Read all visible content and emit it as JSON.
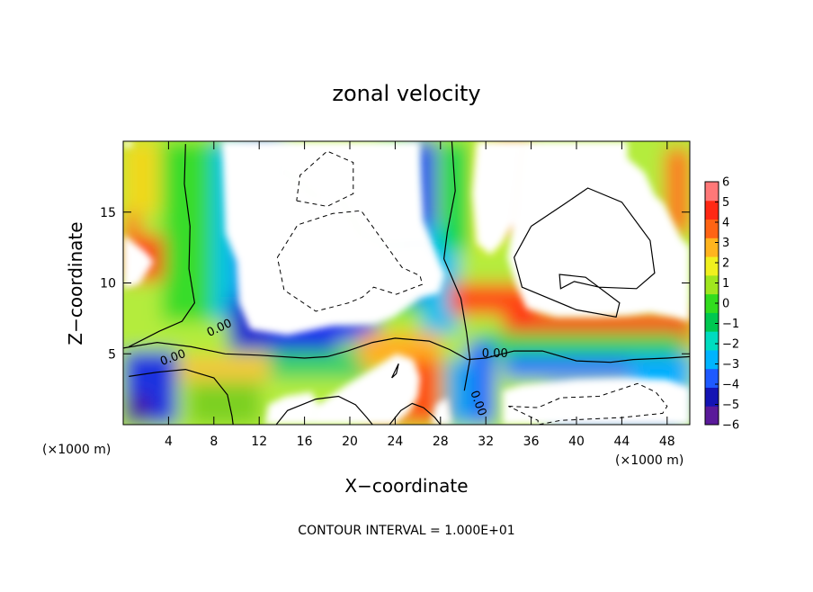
{
  "chart_data": {
    "type": "heatmap",
    "title": "zonal velocity",
    "xlabel": "X−coordinate",
    "ylabel": "Z−coordinate",
    "x_unit": "(×1000 m)",
    "y_unit": "(×1000 m)",
    "footnote": "CONTOUR INTERVAL = 1.000E+01",
    "xlim": [
      0,
      50
    ],
    "ylim": [
      0,
      20
    ],
    "xticks": [
      4,
      8,
      12,
      16,
      20,
      24,
      28,
      32,
      36,
      40,
      44,
      48
    ],
    "yticks": [
      5,
      10,
      15
    ],
    "colorbar": {
      "min": -6,
      "max": 6,
      "ticks": [
        6,
        5,
        4,
        3,
        2,
        1,
        0,
        -1,
        -2,
        -3,
        -4,
        -5,
        -6
      ],
      "tick_labels": [
        "6",
        "5",
        "4",
        "3",
        "2",
        "1",
        "0",
        "−1",
        "−2",
        "−3",
        "−4",
        "−5",
        "−6"
      ],
      "colors": [
        "#5a1a9a",
        "#1414b4",
        "#1e5aff",
        "#00b4ff",
        "#00dcc0",
        "#00c850",
        "#32dc1e",
        "#a0e61e",
        "#f0f01e",
        "#ffb41e",
        "#ff6414",
        "#ff2814",
        "#ff7878"
      ]
    },
    "contour_labels": [
      {
        "text": "0.00",
        "x": 8.5,
        "y": 6.8,
        "angle": -25
      },
      {
        "text": "0.00",
        "x": 4.4,
        "y": 4.7,
        "angle": -20
      },
      {
        "text": "0.00",
        "x": 32.8,
        "y": 5.0,
        "angle": 0
      },
      {
        "text": "0.00",
        "x": 31.3,
        "y": 1.5,
        "angle": 70
      }
    ],
    "contours": [
      {
        "style": "solid",
        "points": [
          [
            5.5,
            19.8
          ],
          [
            5.4,
            17
          ],
          [
            5.9,
            14
          ],
          [
            5.8,
            11
          ],
          [
            6.3,
            8.6
          ],
          [
            5.2,
            7.3
          ],
          [
            3.2,
            6.6
          ],
          [
            0.5,
            5.5
          ]
        ]
      },
      {
        "style": "solid",
        "points": [
          [
            0,
            5.4
          ],
          [
            3,
            5.8
          ],
          [
            6,
            5.5
          ],
          [
            9,
            5
          ],
          [
            12,
            4.9
          ],
          [
            16,
            4.7
          ],
          [
            18,
            4.8
          ],
          [
            19.8,
            5.2
          ],
          [
            22,
            5.8
          ],
          [
            24,
            6.1
          ],
          [
            27,
            5.9
          ],
          [
            28.8,
            5.3
          ],
          [
            30.4,
            4.6
          ],
          [
            32,
            4.7
          ],
          [
            34.5,
            5.2
          ],
          [
            37,
            5.2
          ],
          [
            40,
            4.5
          ],
          [
            43,
            4.4
          ],
          [
            45,
            4.6
          ],
          [
            48,
            4.7
          ],
          [
            50,
            4.8
          ]
        ]
      },
      {
        "style": "solid",
        "points": [
          [
            0.5,
            3.4
          ],
          [
            3,
            3.7
          ],
          [
            5.5,
            3.9
          ],
          [
            8,
            3.3
          ],
          [
            9.2,
            2.1
          ],
          [
            9.6,
            0.6
          ],
          [
            9.7,
            0
          ]
        ]
      },
      {
        "style": "solid",
        "points": [
          [
            30.1,
            2.4
          ],
          [
            30.6,
            4.6
          ],
          [
            30.3,
            6.5
          ],
          [
            29.8,
            8.9
          ],
          [
            28.3,
            11.7
          ],
          [
            28.6,
            13.6
          ],
          [
            29.3,
            16.5
          ],
          [
            29.0,
            20
          ]
        ]
      },
      {
        "style": "solid",
        "points": [
          [
            13.5,
            0
          ],
          [
            14.5,
            1
          ],
          [
            17,
            1.8
          ],
          [
            19,
            2
          ],
          [
            20.5,
            1.4
          ],
          [
            21.5,
            0.5
          ],
          [
            22,
            0
          ]
        ]
      },
      {
        "style": "solid",
        "points": [
          [
            23.7,
            3.3
          ],
          [
            24.3,
            4.3
          ],
          [
            24.1,
            3.6
          ],
          [
            23.7,
            3.3
          ]
        ]
      },
      {
        "style": "solid",
        "points": [
          [
            23.5,
            0
          ],
          [
            24.5,
            1
          ],
          [
            25.5,
            1.5
          ],
          [
            26.5,
            1.2
          ],
          [
            27.5,
            0.5
          ],
          [
            28,
            0
          ]
        ]
      },
      {
        "style": "solid",
        "points": [
          [
            36,
            14
          ],
          [
            39,
            15.6
          ],
          [
            41,
            16.7
          ],
          [
            44,
            15.7
          ],
          [
            46.5,
            13
          ],
          [
            46.9,
            10.7
          ],
          [
            45.3,
            9.6
          ],
          [
            42,
            9.7
          ],
          [
            39.8,
            10.1
          ],
          [
            38.6,
            9.6
          ],
          [
            38.5,
            10.6
          ],
          [
            40.8,
            10.4
          ],
          [
            43.8,
            8.6
          ],
          [
            43.5,
            7.6
          ],
          [
            40,
            8.1
          ],
          [
            35.2,
            9.7
          ],
          [
            34.5,
            11.8
          ],
          [
            36,
            14
          ]
        ]
      },
      {
        "style": "dashed",
        "points": [
          [
            15.3,
            15.8
          ],
          [
            18,
            15.4
          ],
          [
            20.3,
            16.3
          ],
          [
            20.3,
            18.5
          ],
          [
            18,
            19.3
          ],
          [
            15.6,
            17.6
          ],
          [
            15.3,
            15.8
          ]
        ]
      },
      {
        "style": "dashed",
        "points": [
          [
            13.6,
            11.8
          ],
          [
            15.4,
            14.1
          ],
          [
            18.5,
            14.9
          ],
          [
            21,
            15.1
          ],
          [
            24.6,
            11.1
          ],
          [
            26.2,
            10.5
          ],
          [
            26.4,
            9.9
          ],
          [
            24.1,
            9.2
          ],
          [
            22.1,
            9.7
          ],
          [
            21.1,
            9.0
          ],
          [
            19.9,
            8.6
          ],
          [
            17,
            8.0
          ],
          [
            14.2,
            9.5
          ],
          [
            13.6,
            11.8
          ]
        ]
      },
      {
        "style": "dashed",
        "points": [
          [
            34,
            1.3
          ],
          [
            36.6,
            1.2
          ],
          [
            38.6,
            1.9
          ],
          [
            42,
            2.0
          ],
          [
            45.4,
            2.9
          ],
          [
            47,
            2.3
          ],
          [
            48,
            1.3
          ],
          [
            47.6,
            0.8
          ],
          [
            44,
            0.5
          ],
          [
            38.6,
            0.3
          ],
          [
            36.6,
            0
          ],
          [
            36.6,
            0.3
          ],
          [
            34,
            1.3
          ]
        ]
      }
    ],
    "clear_regions": [
      {
        "points": [
          [
            17.2,
            16
          ],
          [
            19.1,
            16
          ],
          [
            21,
            13.5
          ],
          [
            23.5,
            12.6
          ],
          [
            26.6,
            12.8
          ],
          [
            28.4,
            10.6
          ],
          [
            27.9,
            9.3
          ],
          [
            26.2,
            8.9
          ],
          [
            23.9,
            7.6
          ],
          [
            22.2,
            7.1
          ],
          [
            18.6,
            7.0
          ],
          [
            14.5,
            6.3
          ],
          [
            11.2,
            6.7
          ],
          [
            10.2,
            8.6
          ],
          [
            10.0,
            11.5
          ],
          [
            9.0,
            13.5
          ],
          [
            8.7,
            20
          ],
          [
            14,
            20
          ],
          [
            14,
            18
          ],
          [
            17.2,
            16
          ]
        ]
      },
      {
        "points": [
          [
            13,
            20
          ],
          [
            26.2,
            20
          ],
          [
            26.3,
            17.3
          ],
          [
            26.5,
            14.4
          ],
          [
            28.4,
            10.6
          ],
          [
            26.6,
            12.8
          ],
          [
            23.5,
            12.6
          ],
          [
            21,
            13.5
          ],
          [
            19.1,
            16
          ],
          [
            17.2,
            16
          ],
          [
            14,
            18
          ],
          [
            13,
            20
          ]
        ]
      },
      {
        "points": [
          [
            35.3,
            20
          ],
          [
            44.5,
            20
          ],
          [
            44.5,
            18.8
          ],
          [
            46,
            17.8
          ],
          [
            46.9,
            16.2
          ],
          [
            47.7,
            15.6
          ],
          [
            49.2,
            13.2
          ],
          [
            50,
            12.5
          ],
          [
            50,
            7.3
          ],
          [
            48.5,
            7.6
          ],
          [
            46.5,
            7.9
          ],
          [
            44.5,
            7.7
          ],
          [
            41.8,
            7.6
          ],
          [
            38.2,
            7.6
          ],
          [
            35.6,
            8.2
          ],
          [
            34.7,
            9.8
          ],
          [
            33.9,
            11.8
          ],
          [
            34.4,
            14.2
          ],
          [
            34.8,
            16.7
          ],
          [
            35.3,
            20
          ]
        ]
      },
      {
        "points": [
          [
            31.2,
            20
          ],
          [
            35.3,
            20
          ],
          [
            34.8,
            16.7
          ],
          [
            34.4,
            14.2
          ],
          [
            33.4,
            12.8
          ],
          [
            32.4,
            12
          ],
          [
            31.2,
            12.8
          ],
          [
            30.8,
            16.3
          ],
          [
            31.2,
            20
          ]
        ]
      },
      {
        "points": [
          [
            33.5,
            0
          ],
          [
            50,
            0
          ],
          [
            50,
            2.6
          ],
          [
            48,
            3.2
          ],
          [
            44.5,
            3.3
          ],
          [
            40,
            3.2
          ],
          [
            35.2,
            2.8
          ],
          [
            33.5,
            2.4
          ],
          [
            33.5,
            0
          ]
        ]
      },
      {
        "points": [
          [
            16.6,
            0
          ],
          [
            17.2,
            1.4
          ],
          [
            19.7,
            2.8
          ],
          [
            22.4,
            4.1
          ],
          [
            24.1,
            5.0
          ],
          [
            25.6,
            4.6
          ],
          [
            26.2,
            3.3
          ],
          [
            26.0,
            2.0
          ],
          [
            25.2,
            0.9
          ],
          [
            23.9,
            0
          ],
          [
            16.6,
            0
          ]
        ]
      },
      {
        "points": [
          [
            12.5,
            0
          ],
          [
            12.8,
            1.4
          ],
          [
            14.3,
            2.0
          ],
          [
            16.6,
            2.3
          ],
          [
            17.2,
            1.4
          ],
          [
            16.6,
            0
          ],
          [
            12.5,
            0
          ]
        ]
      },
      {
        "points": [
          [
            27.2,
            0
          ],
          [
            27.6,
            1.4
          ],
          [
            28.6,
            1.9
          ],
          [
            29.0,
            0
          ],
          [
            27.2,
            0
          ]
        ]
      },
      {
        "points": [
          [
            0,
            13.4
          ],
          [
            2.0,
            12.2
          ],
          [
            2.7,
            11.5
          ],
          [
            1.4,
            9.9
          ],
          [
            0,
            9.6
          ],
          [
            0,
            13.4
          ]
        ]
      },
      {
        "points": [
          [
            0,
            20
          ],
          [
            0.8,
            20
          ],
          [
            0.8,
            19.6
          ],
          [
            0,
            19.6
          ],
          [
            0,
            20
          ]
        ]
      }
    ]
  }
}
